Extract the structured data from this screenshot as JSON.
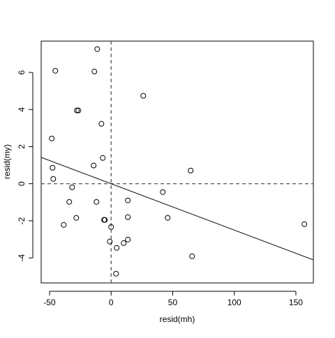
{
  "chart_data": {
    "type": "scatter",
    "x_label": "resid(mh)",
    "y_label": "resid(my)",
    "x": [
      -11.3,
      -45.3,
      -13.6,
      26.1,
      -27.8,
      -26.6,
      -7.9,
      -48.2,
      -6.8,
      -14.2,
      -47.6,
      64.6,
      -47.0,
      -31.7,
      41.9,
      -34.0,
      -11.9,
      13.6,
      -28.3,
      13.6,
      45.9,
      -5.7,
      -5.1,
      -38.5,
      156.9,
      0.0,
      13.6,
      -1.1,
      10.2,
      4.5,
      65.7,
      4.0
    ],
    "values": [
      7.26,
      6.09,
      6.05,
      4.74,
      3.95,
      3.95,
      3.23,
      2.44,
      1.39,
      0.98,
      0.86,
      0.71,
      0.26,
      -0.19,
      -0.45,
      -0.98,
      -0.98,
      -0.9,
      -1.84,
      -1.8,
      -1.84,
      -1.95,
      -1.95,
      -2.22,
      -2.18,
      -2.33,
      -3.01,
      -3.12,
      -3.2,
      -3.46,
      -3.91,
      -4.85
    ],
    "color": "#000000",
    "fit_line": {
      "intercept": 0.0,
      "slope": -0.025
    },
    "reference_lines": {
      "x": 0,
      "y": 0
    },
    "xlim": [
      -56.8,
      164.2
    ],
    "ylim": [
      -5.35,
      7.69
    ],
    "xticks": [
      -50,
      0,
      50,
      100,
      150
    ],
    "yticks": [
      -4,
      -2,
      0,
      2,
      4,
      6
    ]
  }
}
